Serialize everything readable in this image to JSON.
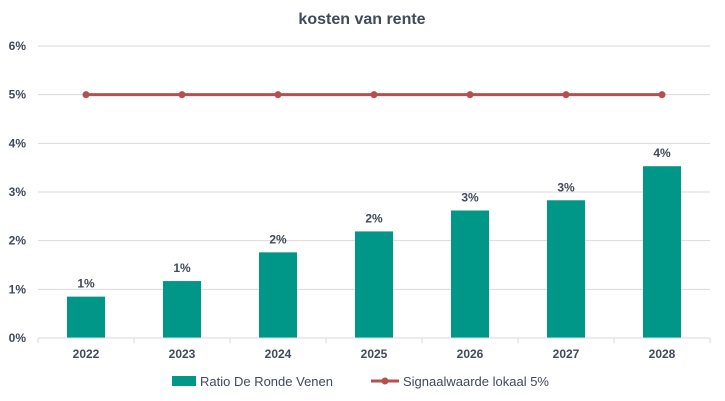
{
  "chart_data": {
    "type": "bar",
    "title": "kosten van rente",
    "categories": [
      "2022",
      "2023",
      "2024",
      "2025",
      "2026",
      "2027",
      "2028"
    ],
    "series": [
      {
        "name": "Ratio De Ronde Venen",
        "kind": "bar",
        "color": "#009688",
        "values": [
          0.85,
          1.17,
          1.76,
          2.19,
          2.62,
          2.83,
          3.53
        ],
        "data_labels": [
          "1%",
          "1%",
          "2%",
          "2%",
          "3%",
          "3%",
          "4%"
        ]
      },
      {
        "name": "Signaalwaarde lokaal 5%",
        "kind": "line",
        "color": "#b5504d",
        "values": [
          5,
          5,
          5,
          5,
          5,
          5,
          5
        ]
      }
    ],
    "ylim": [
      0,
      6
    ],
    "yticks": [
      "0%",
      "1%",
      "2%",
      "3%",
      "4%",
      "5%",
      "6%"
    ],
    "grid": true,
    "legend": "bottom"
  }
}
